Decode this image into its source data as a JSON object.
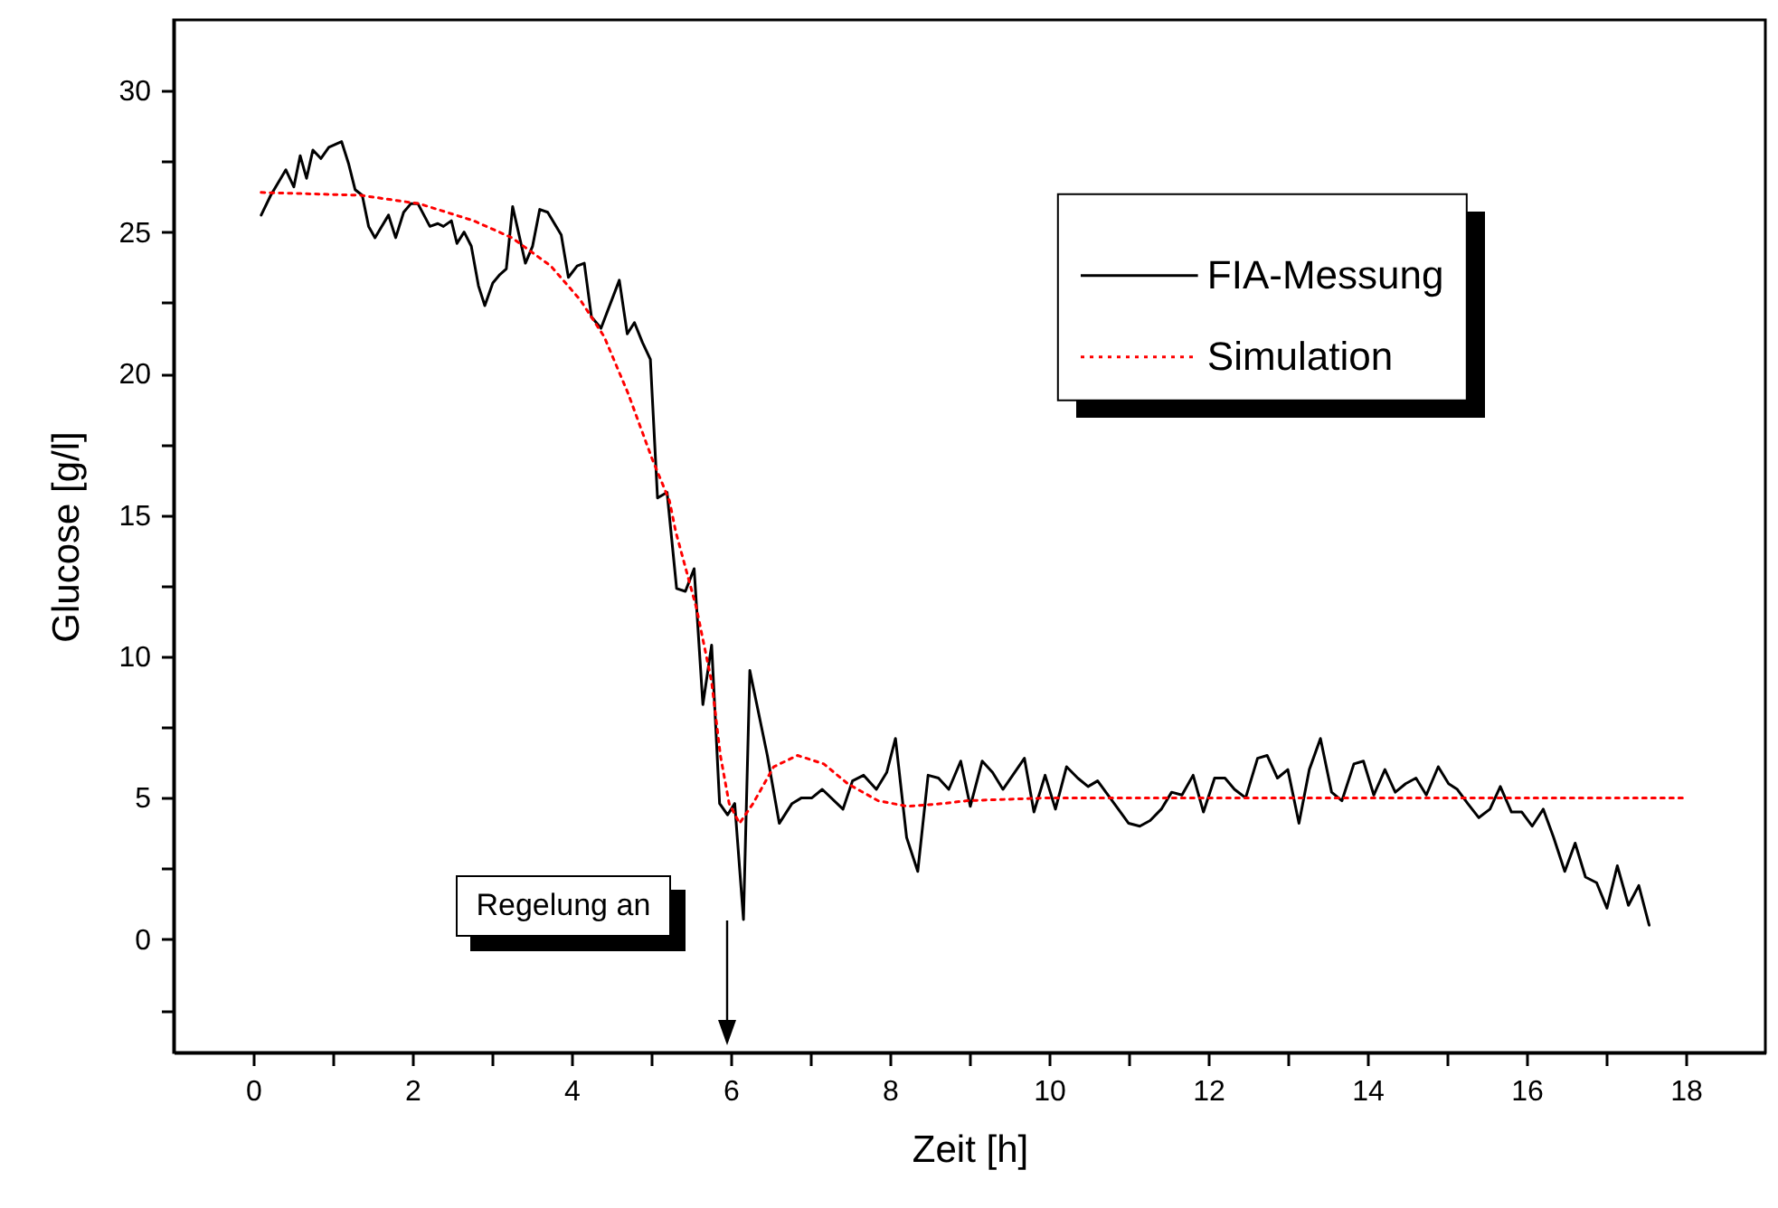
{
  "chart_data": {
    "type": "line",
    "xlabel": "Zeit [h]",
    "ylabel": "Glucose [g/l]",
    "xlim": [
      -1,
      19
    ],
    "ylim": [
      -4,
      32.5
    ],
    "xticks": [
      0,
      {
        "value": 1,
        "label": null
      },
      2,
      {
        "value": 3,
        "label": null
      },
      4,
      {
        "value": 5,
        "label": null
      },
      6,
      {
        "value": 7,
        "label": null
      },
      8,
      {
        "value": 9,
        "label": null
      },
      10,
      {
        "value": 11,
        "label": null
      },
      12,
      {
        "value": 13,
        "label": null
      },
      14,
      {
        "value": 15,
        "label": null
      },
      16,
      {
        "value": 17,
        "label": null
      },
      18
    ],
    "yticks": [
      {
        "value": -2.5,
        "label": null
      },
      0,
      {
        "value": 2.5,
        "label": null
      },
      5,
      {
        "value": 7.5,
        "label": null
      },
      10,
      {
        "value": 12.5,
        "label": null
      },
      15,
      {
        "value": 17.5,
        "label": null
      },
      20,
      {
        "value": 22.5,
        "label": null
      },
      25,
      {
        "value": 27.5,
        "label": null
      },
      30
    ],
    "grid": false,
    "legend": "top right",
    "annotations": [
      "Regelung an"
    ],
    "series": [
      {
        "name": "FIA-Messung",
        "color": "#000000",
        "line_style": "solid",
        "x": [
          0.1,
          0.22,
          0.41,
          0.51,
          0.59,
          0.67,
          0.75,
          0.85,
          0.95,
          1.11,
          1.2,
          1.28,
          1.37,
          1.45,
          1.53,
          1.7,
          1.79,
          1.89,
          1.98,
          2.07,
          2.22,
          2.32,
          2.39,
          2.49,
          2.56,
          2.65,
          2.74,
          2.83,
          2.91,
          3.01,
          3.1,
          3.18,
          3.26,
          3.42,
          3.51,
          3.6,
          3.7,
          3.87,
          3.96,
          4.07,
          4.16,
          4.25,
          4.37,
          4.6,
          4.7,
          4.79,
          4.89,
          4.99,
          5.08,
          5.2,
          5.32,
          5.43,
          5.54,
          5.65,
          5.76,
          5.86,
          5.96,
          6.05,
          6.16,
          6.24,
          6.46,
          6.61,
          6.77,
          6.89,
          7.02,
          7.15,
          7.41,
          7.53,
          7.67,
          7.83,
          7.96,
          8.07,
          8.21,
          8.35,
          8.48,
          8.61,
          8.74,
          8.89,
          9.01,
          9.16,
          9.29,
          9.42,
          9.69,
          9.81,
          9.95,
          10.08,
          10.22,
          10.36,
          10.49,
          10.61,
          10.87,
          11.0,
          11.14,
          11.27,
          11.41,
          11.54,
          11.67,
          11.81,
          11.94,
          12.08,
          12.21,
          12.33,
          12.47,
          12.62,
          12.74,
          12.87,
          13.0,
          13.14,
          13.27,
          13.41,
          13.55,
          13.68,
          13.83,
          13.95,
          14.08,
          14.22,
          14.35,
          14.48,
          14.61,
          14.74,
          14.89,
          15.02,
          15.13,
          15.26,
          15.4,
          15.54,
          15.67,
          15.81,
          15.94,
          16.07,
          16.21,
          16.34,
          16.48,
          16.61,
          16.74,
          16.88,
          17.01,
          17.14,
          17.28,
          17.41,
          17.54
        ],
        "values": [
          25.6,
          26.3,
          27.2,
          26.6,
          27.7,
          26.9,
          27.9,
          27.6,
          28.0,
          28.2,
          27.4,
          26.5,
          26.3,
          25.2,
          24.8,
          25.6,
          24.8,
          25.7,
          26.0,
          26.0,
          25.2,
          25.3,
          25.2,
          25.4,
          24.6,
          25.0,
          24.5,
          23.1,
          22.4,
          23.2,
          23.5,
          23.7,
          25.9,
          23.9,
          24.5,
          25.8,
          25.7,
          24.9,
          23.4,
          23.8,
          23.9,
          22.0,
          21.6,
          23.3,
          21.4,
          21.8,
          21.1,
          20.5,
          15.6,
          15.8,
          12.4,
          12.3,
          13.1,
          8.3,
          10.4,
          4.8,
          4.4,
          4.8,
          0.7,
          9.5,
          6.5,
          4.1,
          4.8,
          5.0,
          5.0,
          5.3,
          4.6,
          5.6,
          5.8,
          5.3,
          5.9,
          7.1,
          3.6,
          2.4,
          5.8,
          5.7,
          5.3,
          6.3,
          4.7,
          6.3,
          5.9,
          5.3,
          6.4,
          4.5,
          5.8,
          4.6,
          6.1,
          5.7,
          5.4,
          5.6,
          4.6,
          4.1,
          4.0,
          4.2,
          4.6,
          5.2,
          5.1,
          5.8,
          4.5,
          5.7,
          5.7,
          5.3,
          5.0,
          6.4,
          6.5,
          5.7,
          6.0,
          4.1,
          6.0,
          7.1,
          5.2,
          4.9,
          6.2,
          6.3,
          5.1,
          6.0,
          5.2,
          5.5,
          5.7,
          5.1,
          6.1,
          5.5,
          5.3,
          4.8,
          4.3,
          4.6,
          5.4,
          4.5,
          4.5,
          4.0,
          4.6,
          3.6,
          2.4,
          3.4,
          2.2,
          2.0,
          1.1,
          2.6,
          1.2,
          1.9,
          0.5
        ]
      },
      {
        "name": "Simulation",
        "color": "#ff0000",
        "line_style": "dotted",
        "x": [
          0.1,
          1.35,
          2.09,
          2.77,
          3.25,
          3.74,
          4.11,
          4.41,
          4.71,
          5.01,
          5.23,
          5.31,
          5.57,
          5.76,
          5.87,
          5.98,
          6.11,
          6.28,
          6.54,
          6.84,
          7.17,
          7.47,
          7.85,
          8.22,
          8.67,
          8.97,
          10,
          18
        ],
        "values": [
          26.4,
          26.3,
          26.0,
          25.4,
          24.8,
          23.8,
          22.6,
          21.3,
          19.3,
          17.0,
          15.5,
          14.4,
          11.7,
          9.1,
          6.5,
          4.8,
          4.1,
          4.8,
          6.1,
          6.5,
          6.2,
          5.5,
          4.9,
          4.7,
          4.8,
          4.9,
          5.0,
          5.0
        ]
      }
    ]
  }
}
